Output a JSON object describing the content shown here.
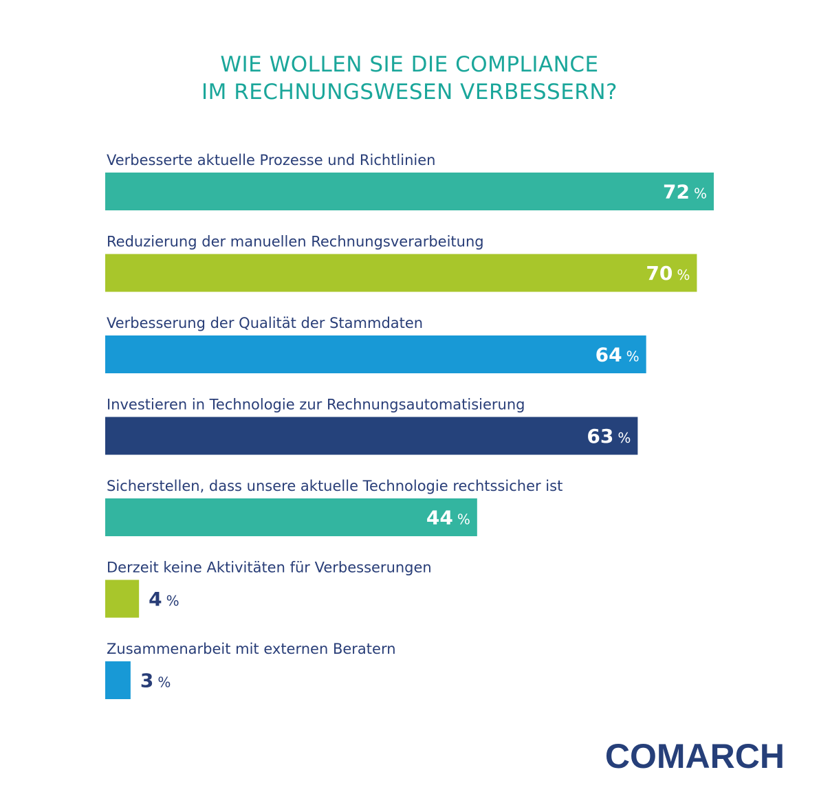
{
  "header": {
    "title_line1": "WIE WOLLEN SIE DIE COMPLIANCE",
    "title_line2": "IM RECHNUNGSWESEN VERBESSERN?"
  },
  "brand": {
    "logo_text": "COMARCH"
  },
  "chart_data": {
    "type": "bar",
    "orientation": "horizontal",
    "title": "WIE WOLLEN SIE DIE COMPLIANCE IM RECHNUNGSWESEN VERBESSERN?",
    "unit": "%",
    "xlim": [
      0,
      100
    ],
    "grid": false,
    "legend": "none",
    "categories": [
      "Verbesserte aktuelle Prozesse und Richtlinien",
      "Reduzierung der manuellen Rechnungsverarbeitung",
      "Verbesserung der Qualität der Stammdaten",
      "Investieren in Technologie zur Rechnungsautomatisierung",
      "Sicherstellen, dass unsere aktuelle Technologie rechtssicher ist",
      "Derzeit keine Aktivitäten für Verbesserungen",
      "Zusammenarbeit mit externen Beratern"
    ],
    "values": [
      72,
      70,
      64,
      63,
      44,
      4,
      3
    ],
    "colors": [
      "#33b5a0",
      "#a8c62b",
      "#1899d6",
      "#25427b",
      "#33b5a0",
      "#a8c62b",
      "#1899d6"
    ],
    "label_color_inside": "#ffffff",
    "label_color_outside": "#283d77"
  }
}
